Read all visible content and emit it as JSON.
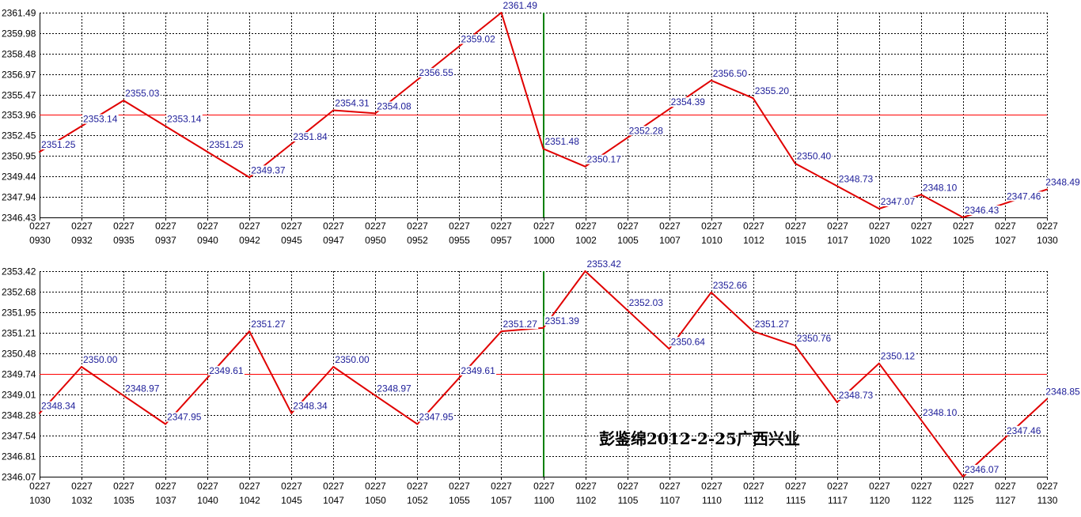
{
  "colors": {
    "background": "#ffffff",
    "grid": "#000000",
    "axis": "#000000",
    "axis_text": "#000000",
    "series": "#e00000",
    "midline": "#ff0000",
    "vertical_marker": "#008000",
    "value_label": "#20209a",
    "annotation": "#000000"
  },
  "chart_data": [
    {
      "type": "line",
      "x_date": "0227",
      "x": [
        "0930",
        "0932",
        "0935",
        "0937",
        "0940",
        "0942",
        "0945",
        "0947",
        "0950",
        "0952",
        "0955",
        "0957",
        "1000",
        "1002",
        "1005",
        "1007",
        "1010",
        "1012",
        "1015",
        "1017",
        "1020",
        "1022",
        "1025",
        "1027",
        "1030"
      ],
      "series": [
        {
          "values": [
            2351.25,
            2353.14,
            2355.03,
            2353.14,
            2351.25,
            2349.37,
            2351.84,
            2354.31,
            2354.08,
            2356.55,
            2359.02,
            2361.49,
            2351.48,
            2350.17,
            2352.28,
            2354.39,
            2356.5,
            2355.2,
            2350.4,
            2348.73,
            2347.07,
            2348.1,
            2346.43,
            2347.46,
            2348.49
          ]
        }
      ],
      "ylim": [
        2346.43,
        2361.49
      ],
      "y_ticks": [
        "2361.49",
        "2359.98",
        "2358.48",
        "2356.97",
        "2355.47",
        "2353.96",
        "2352.45",
        "2350.95",
        "2349.44",
        "2347.94",
        "2346.43"
      ],
      "midline": 2353.96,
      "vertical_marker_at": "1000",
      "grid": true
    },
    {
      "type": "line",
      "x_date": "0227",
      "x": [
        "1030",
        "1032",
        "1035",
        "1037",
        "1040",
        "1042",
        "1045",
        "1047",
        "1050",
        "1052",
        "1055",
        "1057",
        "1100",
        "1102",
        "1105",
        "1107",
        "1110",
        "1112",
        "1115",
        "1117",
        "1120",
        "1122",
        "1125",
        "1127",
        "1130"
      ],
      "series": [
        {
          "values": [
            2348.34,
            2350.0,
            2348.97,
            2347.95,
            2349.61,
            2351.27,
            2348.34,
            2350.0,
            2348.97,
            2347.95,
            2349.61,
            2351.27,
            2351.39,
            2353.42,
            2352.03,
            2350.64,
            2352.66,
            2351.27,
            2350.76,
            2348.73,
            2350.12,
            2348.1,
            2346.07,
            2347.46,
            2348.85
          ]
        }
      ],
      "ylim": [
        2346.07,
        2353.42
      ],
      "y_ticks": [
        "2353.42",
        "2352.68",
        "2351.95",
        "2351.21",
        "2350.48",
        "2349.74",
        "2349.01",
        "2348.28",
        "2347.54",
        "2346.81",
        "2346.07"
      ],
      "midline": 2349.745,
      "vertical_marker_at": "1100",
      "grid": true,
      "annotation": "彭鉴绵2012-2-25广西兴业"
    }
  ]
}
